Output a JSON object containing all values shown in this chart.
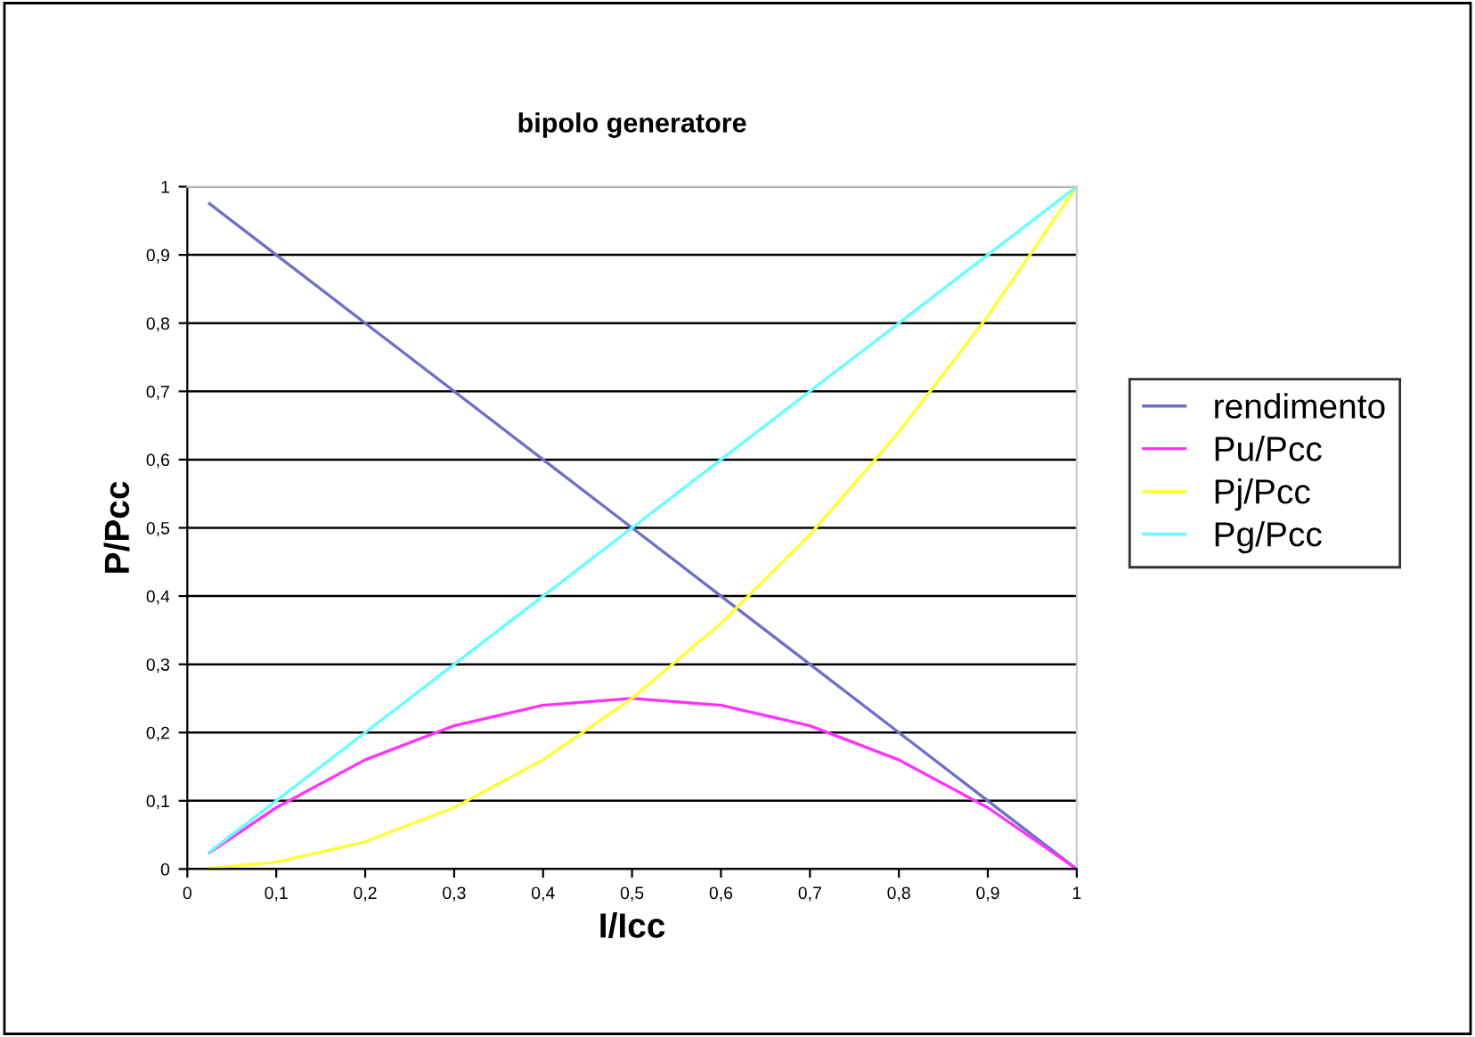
{
  "chart_data": {
    "type": "line",
    "title": "bipolo generatore",
    "xlabel": "I/Icc",
    "ylabel": "P/Pcc",
    "x": [
      0.025,
      0.1,
      0.2,
      0.3,
      0.4,
      0.5,
      0.6,
      0.7,
      0.8,
      0.9,
      1
    ],
    "series": [
      {
        "name": "rendimento",
        "color": "#6f6fc8",
        "values": [
          0.975,
          0.9,
          0.8,
          0.7,
          0.6,
          0.5,
          0.4,
          0.3,
          0.2,
          0.1,
          0
        ]
      },
      {
        "name": "Pu/Pcc",
        "color": "#ff33ff",
        "values": [
          0.024,
          0.09,
          0.16,
          0.21,
          0.24,
          0.25,
          0.24,
          0.21,
          0.16,
          0.09,
          0
        ]
      },
      {
        "name": "Pj/Pcc",
        "color": "#ffff33",
        "values": [
          0.001,
          0.01,
          0.04,
          0.09,
          0.16,
          0.25,
          0.36,
          0.49,
          0.64,
          0.81,
          1
        ]
      },
      {
        "name": "Pg/Pcc",
        "color": "#66ffff",
        "values": [
          0.025,
          0.1,
          0.2,
          0.3,
          0.4,
          0.5,
          0.6,
          0.7,
          0.8,
          0.9,
          1
        ]
      }
    ],
    "xlim": [
      0,
      1
    ],
    "ylim": [
      0,
      1
    ],
    "xticks": [
      0,
      {
        "value": 0.1,
        "label": "0,1"
      },
      {
        "value": 0.2,
        "label": "0,2"
      },
      {
        "value": 0.3,
        "label": "0,3"
      },
      {
        "value": 0.4,
        "label": "0,4"
      },
      {
        "value": 0.5,
        "label": "0,5"
      },
      {
        "value": 0.6,
        "label": "0,6"
      },
      {
        "value": 0.7,
        "label": "0,7"
      },
      {
        "value": 0.8,
        "label": "0,8"
      },
      {
        "value": 0.9,
        "label": "0,9"
      },
      1
    ],
    "yticks": [
      0,
      {
        "value": 0.1,
        "label": "0,1"
      },
      {
        "value": 0.2,
        "label": "0,2"
      },
      {
        "value": 0.3,
        "label": "0,3"
      },
      {
        "value": 0.4,
        "label": "0,4"
      },
      {
        "value": 0.5,
        "label": "0,5"
      },
      {
        "value": 0.6,
        "label": "0,6"
      },
      {
        "value": 0.7,
        "label": "0,7"
      },
      {
        "value": 0.8,
        "label": "0,8"
      },
      {
        "value": 0.9,
        "label": "0,9"
      },
      1
    ],
    "grid": "y",
    "legend": "right",
    "marker": "none",
    "line_style": "solid"
  }
}
